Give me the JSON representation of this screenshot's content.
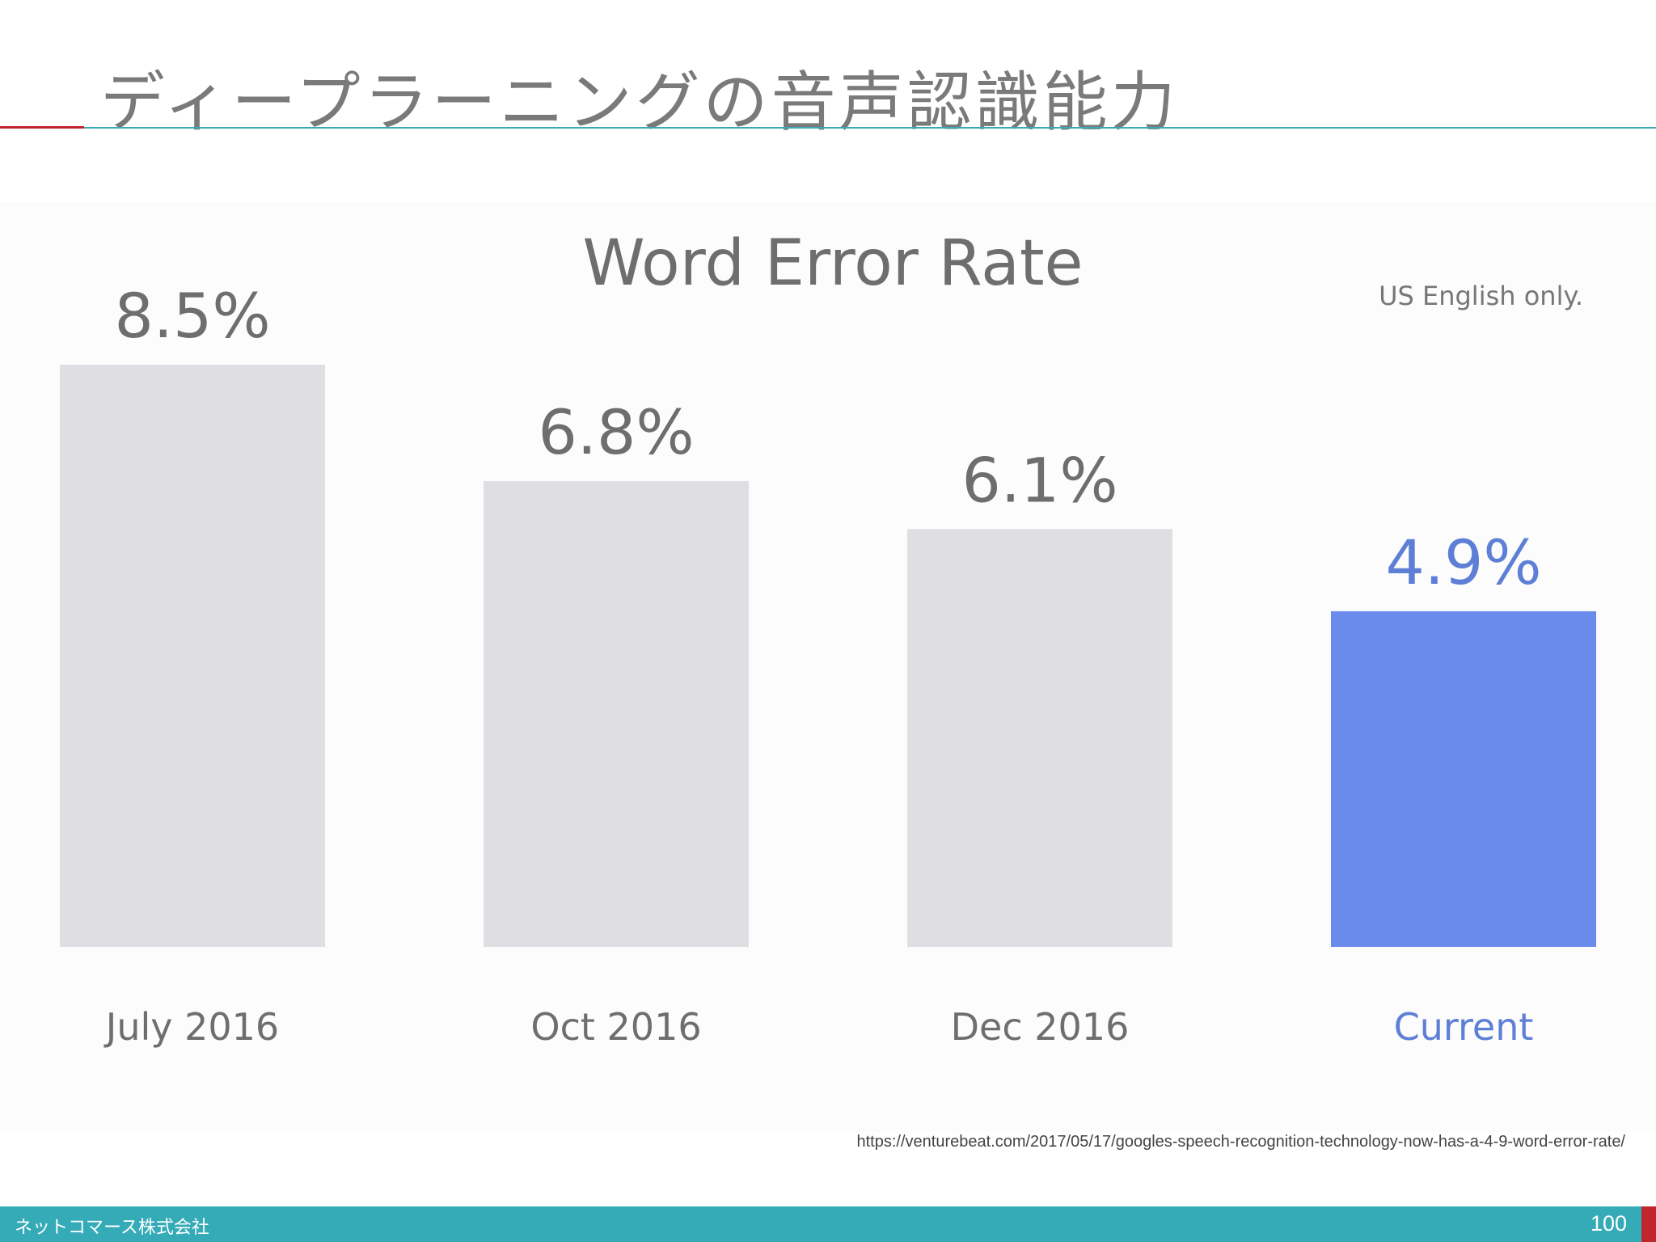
{
  "slide": {
    "title": "ディープラーニングの音声認識能力",
    "source_url": "https://venturebeat.com/2017/05/17/googles-speech-recognition-technology-now-has-a-4-9-word-error-rate/",
    "company": "ネットコマース株式会社",
    "page_number": "100"
  },
  "colors": {
    "bar_default": "#dfdee2",
    "bar_highlight": "#6b8bec",
    "label_default": "#6e6e6e",
    "label_highlight": "#5e7fd6"
  },
  "chart_data": {
    "type": "bar",
    "title": "Word Error Rate",
    "note": "US English only.",
    "categories": [
      "July 2016",
      "Oct 2016",
      "Dec 2016",
      "Current"
    ],
    "values": [
      8.5,
      6.8,
      6.1,
      4.9
    ],
    "value_labels": [
      "8.5%",
      "6.8%",
      "6.1%",
      "4.9%"
    ],
    "highlight_index": 3,
    "ylim": [
      0,
      8.5
    ],
    "grid": false,
    "legend": "none"
  }
}
